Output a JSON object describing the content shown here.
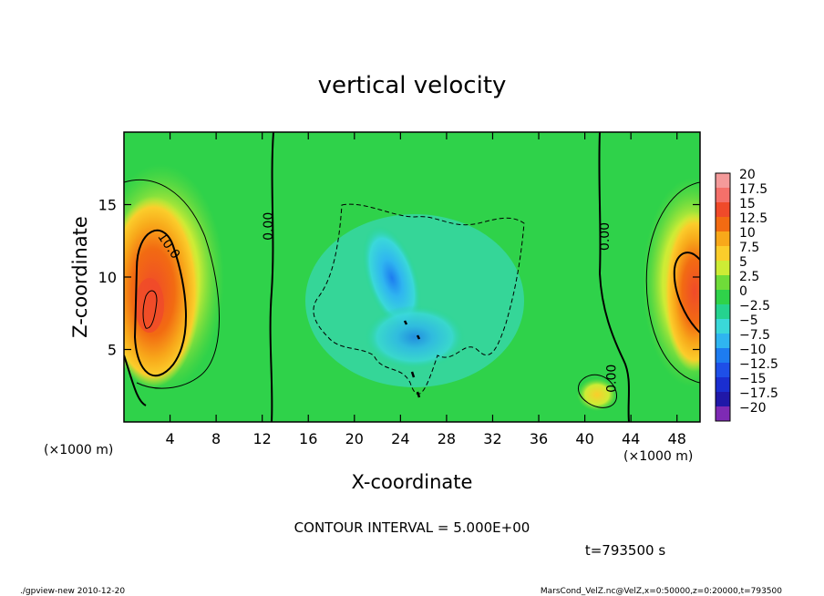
{
  "chart_data": {
    "type": "heatmap",
    "title": "vertical velocity",
    "xlabel": "X-coordinate",
    "ylabel": "Z-coordinate",
    "x_unit": "(×1000 m)",
    "y_unit": "(×1000 m)",
    "xlim": [
      0,
      50
    ],
    "ylim": [
      0,
      20
    ],
    "x_ticks": [
      4,
      8,
      12,
      16,
      20,
      24,
      28,
      32,
      36,
      40,
      44,
      48
    ],
    "y_ticks": [
      5,
      10,
      15
    ],
    "contour_labels": [
      {
        "text": "10.0",
        "x": 3.6,
        "z": 12.0,
        "rotate": 55
      },
      {
        "text": "0.00",
        "x": 12.9,
        "z": 13.5,
        "rotate": -90
      },
      {
        "text": "0.00",
        "x": 42.1,
        "z": 12.8,
        "rotate": -90
      },
      {
        "text": "0.00",
        "x": 42.7,
        "z": 3.0,
        "rotate": -90
      }
    ],
    "colorbar": {
      "labels": [
        "20",
        "17.5",
        "15",
        "12.5",
        "10",
        "7.5",
        "5",
        "2.5",
        "0",
        "−2.5",
        "−5",
        "−7.5",
        "−10",
        "−12.5",
        "−15",
        "−17.5",
        "−20"
      ],
      "colors": [
        "#f49a9a",
        "#f4706a",
        "#f04a2a",
        "#f26b12",
        "#f8a81a",
        "#fbcd2b",
        "#cdec35",
        "#6fdc39",
        "#2fd24a",
        "#25d38f",
        "#3ad8d9",
        "#2fb5f0",
        "#1d7cf0",
        "#1e4fe8",
        "#1a2ed0",
        "#2018a8",
        "#7e2ab4"
      ]
    },
    "contour_interval": "CONTOUR INTERVAL = 5.000E+00",
    "time_label": "t=793500 s"
  },
  "footer": {
    "left": "./gpview-new 2010-12-20",
    "right": "MarsCond_VelZ.nc@VelZ,x=0:50000,z=0:20000,t=793500"
  }
}
